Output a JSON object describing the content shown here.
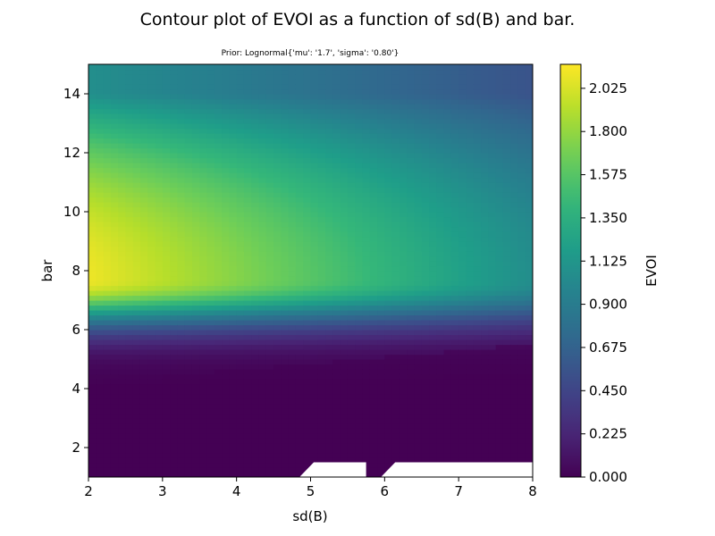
{
  "chart_data": {
    "type": "heatmap",
    "title": "Contour plot of EVOI as a function of sd(B) and bar.",
    "subtitle": "Prior: Lognormal{'mu': '1.7', 'sigma': '0.80'}",
    "xlabel": "sd(B)",
    "ylabel": "bar",
    "xlim": [
      2,
      8
    ],
    "ylim": [
      1,
      15
    ],
    "x_ticks": [
      "2",
      "3",
      "4",
      "5",
      "6",
      "7",
      "8"
    ],
    "y_ticks": [
      "2",
      "4",
      "6",
      "8",
      "10",
      "12",
      "14"
    ],
    "colorbar": {
      "label": "EVOI",
      "colormap": "viridis",
      "range": [
        0,
        2.15
      ],
      "ticks": [
        "0.000",
        "0.225",
        "0.450",
        "0.675",
        "0.900",
        "1.125",
        "1.350",
        "1.575",
        "1.800",
        "2.025"
      ]
    },
    "description_points": {
      "peak_bar": 7.7,
      "peak_value_at_sd2": 2.1,
      "value_at_bar14_sd2": 0.95,
      "value_at_bar14_sd8": 0.5,
      "value_at_bar8_sd8": 1.05
    },
    "missing_regions": [
      {
        "x": [
          4.85,
          5.75
        ],
        "y": [
          1,
          1.5
        ]
      },
      {
        "x": [
          5.95,
          8.0
        ],
        "y": [
          1,
          1.5
        ]
      }
    ]
  }
}
